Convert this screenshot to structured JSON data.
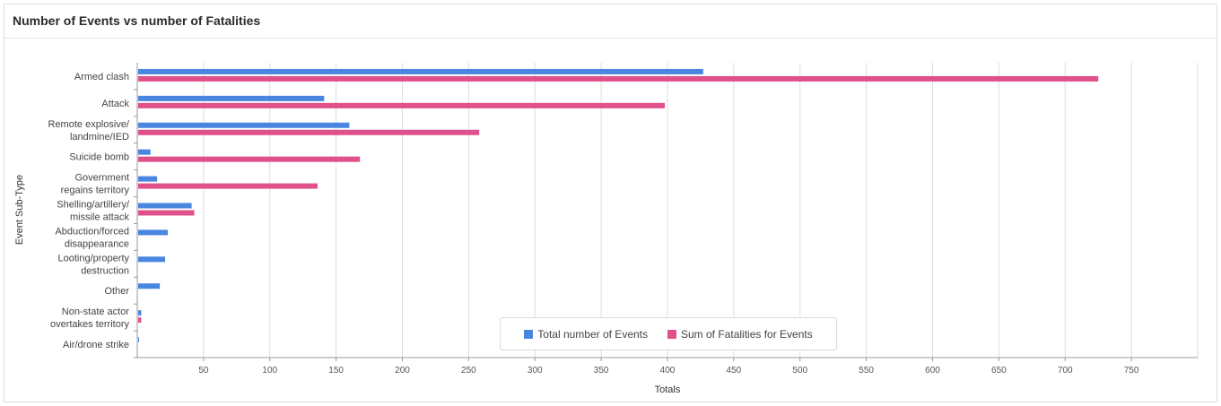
{
  "header": {
    "title": "Number of Events vs number of Fatalities"
  },
  "chart_data": {
    "type": "bar",
    "orientation": "horizontal",
    "categories": [
      "Armed clash",
      "Attack",
      "Remote explosive/ landmine/IED",
      "Suicide bomb",
      "Government regains territory",
      "Shelling/artillery/ missile attack",
      "Abduction/forced disappearance",
      "Looting/property destruction",
      "Other",
      "Non-state actor overtakes territory",
      "Air/drone strike"
    ],
    "category_lines": [
      [
        "Armed clash"
      ],
      [
        "Attack"
      ],
      [
        "Remote explosive/",
        "landmine/IED"
      ],
      [
        "Suicide bomb"
      ],
      [
        "Government",
        "regains territory"
      ],
      [
        "Shelling/artillery/",
        "missile attack"
      ],
      [
        "Abduction/forced",
        "disappearance"
      ],
      [
        "Looting/property",
        "destruction"
      ],
      [
        "Other"
      ],
      [
        "Non-state actor",
        "overtakes territory"
      ],
      [
        "Air/drone strike"
      ]
    ],
    "series": [
      {
        "name": "Total number of Events",
        "color": "#4a86e0",
        "values": [
          427,
          141,
          160,
          10,
          15,
          41,
          23,
          21,
          17,
          3,
          1
        ]
      },
      {
        "name": "Sum of Fatalities for Events",
        "color": "#e0508a",
        "values": [
          725,
          398,
          258,
          168,
          136,
          43,
          0,
          0,
          0,
          3,
          0
        ]
      }
    ],
    "xlabel": "Totals",
    "ylabel": "Event Sub-Type",
    "xlim": [
      0,
      800
    ],
    "xticks": [
      50,
      100,
      150,
      200,
      250,
      300,
      350,
      400,
      450,
      500,
      550,
      600,
      650,
      700,
      750
    ],
    "grid": true,
    "legend_position": "bottom-center"
  }
}
